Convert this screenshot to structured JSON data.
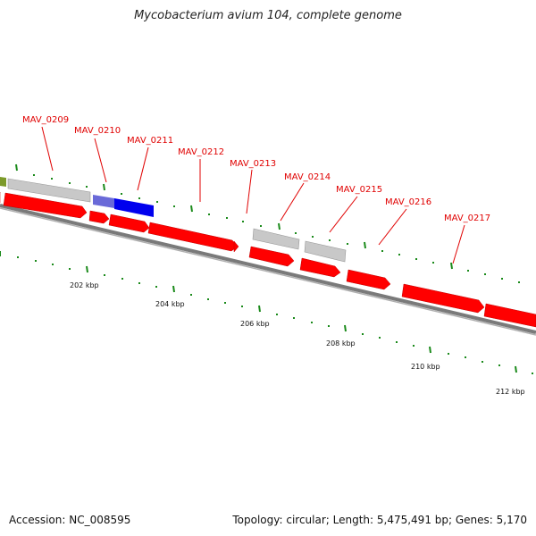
{
  "title": "Mycobacterium avium 104, complete genome",
  "footer": {
    "accession": "Accession: NC_008595",
    "summary": "Topology: circular; Length: 5,475,491 bp; Genes: 5,170"
  },
  "colors": {
    "gene_red": "#ff0000",
    "gene_grey": "#c8c8c8",
    "gene_blue": "#0000ee",
    "gene_olive": "#7c9a2a",
    "label_red": "#e00000",
    "tick_green": "#1a8a1a",
    "backbone": "#7a7a7a"
  },
  "labels": [
    {
      "text": "MAV_0209"
    },
    {
      "text": "MAV_0210"
    },
    {
      "text": "MAV_0211"
    },
    {
      "text": "MAV_0212"
    },
    {
      "text": "MAV_0213"
    },
    {
      "text": "MAV_0214"
    },
    {
      "text": "MAV_0215"
    },
    {
      "text": "MAV_0216"
    },
    {
      "text": "MAV_0217"
    }
  ],
  "kbp_labels": [
    {
      "text": "202 kbp"
    },
    {
      "text": "204 kbp"
    },
    {
      "text": "206 kbp"
    },
    {
      "text": "208 kbp"
    },
    {
      "text": "210 kbp"
    },
    {
      "text": "212 kbp"
    }
  ]
}
